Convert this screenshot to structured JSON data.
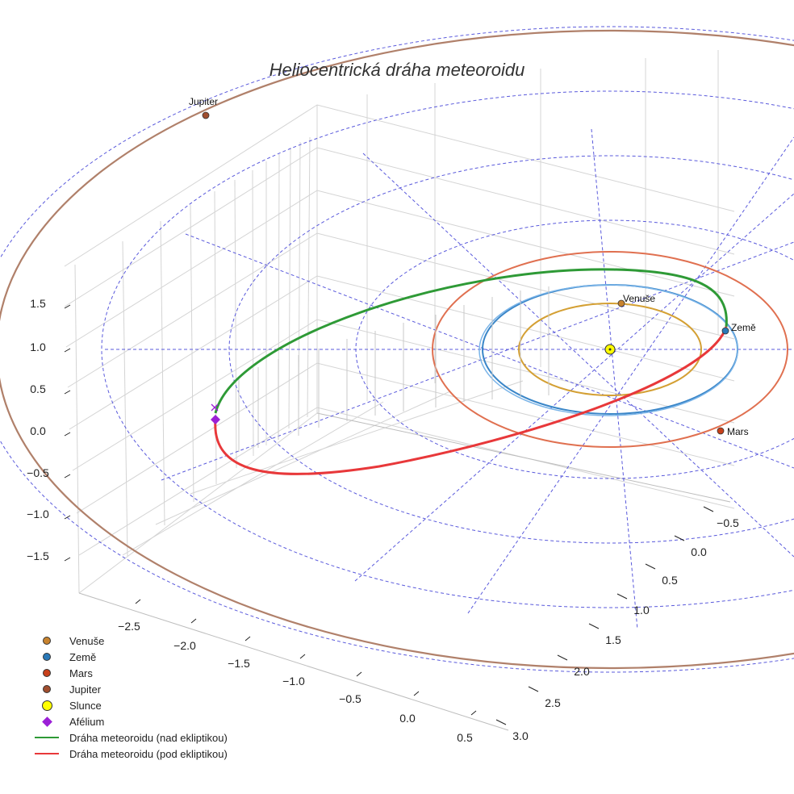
{
  "chart_data": {
    "type": "line",
    "projection": "3d",
    "title": "Heliocentrická dráha meteoroidu",
    "axes": {
      "z_ticks": [
        "1.5",
        "1.0",
        "0.5",
        "0.0",
        "−0.5",
        "−1.0",
        "−1.5"
      ],
      "x_ticks": [
        "−2.5",
        "−2.0",
        "−1.5",
        "−1.0",
        "−0.5",
        "0.0",
        "0.5"
      ],
      "y_ticks": [
        "−0.5",
        "0.0",
        "0.5",
        "1.0",
        "1.5",
        "2.0",
        "2.5",
        "3.0"
      ],
      "x_range": [
        -2.7,
        0.6
      ],
      "y_range": [
        -0.7,
        3.1
      ],
      "z_range": [
        -1.9,
        1.9
      ],
      "grid": true
    },
    "planets": [
      {
        "name": "Venuše",
        "semi_major_axis_au": 0.72,
        "color": "#d4a034",
        "marker_color": "#c8832e"
      },
      {
        "name": "Země",
        "semi_major_axis_au": 1.0,
        "color": "#3a86c8",
        "marker_color": "#2a79b8"
      },
      {
        "name": "Mars",
        "semi_major_axis_au": 1.52,
        "color": "#e07050",
        "marker_color": "#c8401a"
      },
      {
        "name": "Jupiter",
        "semi_major_axis_au": 5.2,
        "color": "#b0806a",
        "marker_color": "#a04e2e"
      }
    ],
    "sun": {
      "name": "Slunce",
      "color": "#ffff00"
    },
    "aphelion": {
      "name": "Afélium",
      "color": "#9b1fd6"
    },
    "meteoroid": {
      "perihelion_au": 0.97,
      "aphelion_au": 3.0,
      "series": [
        {
          "name": "Dráha meteoroidu (nad ekliptikou)",
          "color": "#2e9a36"
        },
        {
          "name": "Dráha meteoroidu (pod ekliptikou)",
          "color": "#e8383a"
        }
      ]
    },
    "legend_position": "bottom-left"
  },
  "legend": [
    {
      "label": "Venuše",
      "kind": "dot",
      "color": "#c8832e"
    },
    {
      "label": "Země",
      "kind": "dot",
      "color": "#2a79b8"
    },
    {
      "label": "Mars",
      "kind": "dot",
      "color": "#c8401a"
    },
    {
      "label": "Jupiter",
      "kind": "dot",
      "color": "#a04e2e"
    },
    {
      "label": "Slunce",
      "kind": "bigdot",
      "color": "#ffff00"
    },
    {
      "label": "Afélium",
      "kind": "diamond",
      "color": "#9b1fd6"
    },
    {
      "label": "Dráha meteoroidu (nad ekliptikou)",
      "kind": "line",
      "color": "#2e9a36"
    },
    {
      "label": "Dráha meteoroidu (pod ekliptikou)",
      "kind": "line",
      "color": "#e8383a"
    }
  ]
}
